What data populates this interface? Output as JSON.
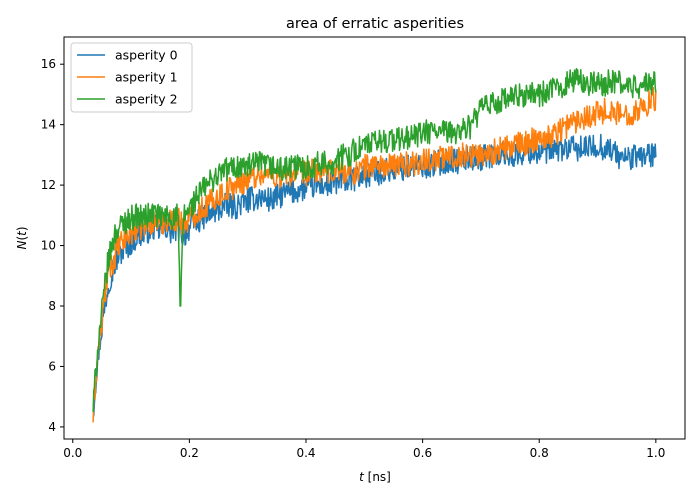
{
  "chart_data": {
    "type": "line",
    "title": "area of erratic asperities",
    "xlabel": {
      "var": "t",
      "unit": " [ns]"
    },
    "ylabel": {
      "func": "N",
      "arg": "t"
    },
    "xlim": [
      -0.015,
      1.05
    ],
    "ylim": [
      3.6,
      16.9
    ],
    "xticks": [
      {
        "value": 0.0,
        "label": "0.0"
      },
      {
        "value": 0.2,
        "label": "0.2"
      },
      {
        "value": 0.4,
        "label": "0.4"
      },
      {
        "value": 0.6,
        "label": "0.6"
      },
      {
        "value": 0.8,
        "label": "0.8"
      },
      {
        "value": 1.0,
        "label": "1.0"
      }
    ],
    "yticks": [
      {
        "value": 4,
        "label": "4"
      },
      {
        "value": 6,
        "label": "6"
      },
      {
        "value": 8,
        "label": "8"
      },
      {
        "value": 10,
        "label": "10"
      },
      {
        "value": 12,
        "label": "12"
      },
      {
        "value": 14,
        "label": "14"
      },
      {
        "value": 16,
        "label": "16"
      }
    ],
    "grid": false,
    "legend_position": "top-left",
    "series": [
      {
        "name": "asperity 0",
        "color": "#1f77b4",
        "x": [
          0.035,
          0.04,
          0.045,
          0.05,
          0.055,
          0.06,
          0.065,
          0.07,
          0.075,
          0.08,
          0.09,
          0.1,
          0.11,
          0.12,
          0.13,
          0.14,
          0.15,
          0.16,
          0.17,
          0.18,
          0.19,
          0.2,
          0.22,
          0.24,
          0.26,
          0.28,
          0.3,
          0.32,
          0.34,
          0.36,
          0.38,
          0.4,
          0.42,
          0.44,
          0.46,
          0.48,
          0.5,
          0.52,
          0.54,
          0.56,
          0.58,
          0.6,
          0.62,
          0.64,
          0.66,
          0.68,
          0.7,
          0.72,
          0.74,
          0.76,
          0.78,
          0.8,
          0.82,
          0.84,
          0.86,
          0.88,
          0.9,
          0.92,
          0.94,
          0.96,
          0.98,
          1.0
        ],
        "y": [
          4.5,
          5.7,
          6.6,
          7.3,
          8.0,
          8.6,
          9.0,
          9.3,
          9.5,
          9.7,
          9.9,
          10.1,
          10.3,
          10.4,
          10.5,
          10.6,
          10.5,
          10.6,
          10.4,
          10.6,
          10.3,
          10.6,
          10.9,
          11.1,
          11.3,
          11.3,
          11.5,
          11.6,
          11.5,
          11.7,
          11.8,
          11.9,
          12.0,
          12.0,
          12.1,
          12.2,
          12.3,
          12.4,
          12.5,
          12.5,
          12.6,
          12.6,
          12.7,
          12.8,
          12.8,
          12.9,
          12.9,
          13.0,
          13.0,
          13.0,
          13.1,
          13.1,
          13.1,
          13.2,
          13.2,
          13.2,
          13.3,
          13.2,
          12.9,
          12.9,
          13.0,
          13.0
        ]
      },
      {
        "name": "asperity 1",
        "color": "#ff7f0e",
        "x": [
          0.035,
          0.04,
          0.045,
          0.05,
          0.055,
          0.06,
          0.065,
          0.07,
          0.075,
          0.08,
          0.09,
          0.1,
          0.11,
          0.12,
          0.13,
          0.14,
          0.15,
          0.16,
          0.17,
          0.18,
          0.19,
          0.2,
          0.22,
          0.24,
          0.26,
          0.28,
          0.3,
          0.32,
          0.34,
          0.36,
          0.38,
          0.4,
          0.42,
          0.44,
          0.46,
          0.48,
          0.5,
          0.52,
          0.54,
          0.56,
          0.58,
          0.6,
          0.62,
          0.64,
          0.66,
          0.68,
          0.7,
          0.72,
          0.74,
          0.76,
          0.78,
          0.8,
          0.82,
          0.84,
          0.86,
          0.88,
          0.9,
          0.92,
          0.94,
          0.96,
          0.98,
          1.0
        ],
        "y": [
          4.3,
          5.8,
          6.7,
          7.5,
          8.3,
          9.0,
          9.3,
          9.5,
          9.8,
          10.0,
          10.2,
          10.4,
          10.6,
          10.6,
          10.8,
          10.8,
          10.7,
          10.9,
          10.8,
          10.9,
          10.7,
          10.9,
          11.2,
          11.5,
          11.8,
          12.0,
          12.2,
          12.4,
          12.3,
          12.3,
          12.4,
          12.4,
          12.5,
          12.4,
          12.5,
          12.4,
          12.6,
          12.7,
          12.6,
          12.7,
          12.7,
          12.8,
          12.9,
          12.9,
          13.0,
          13.0,
          13.0,
          13.1,
          13.2,
          13.3,
          13.4,
          13.6,
          13.6,
          13.9,
          14.1,
          14.3,
          14.4,
          14.5,
          14.3,
          14.4,
          14.6,
          14.9
        ]
      },
      {
        "name": "asperity 2",
        "color": "#2ca02c",
        "x": [
          0.035,
          0.04,
          0.045,
          0.05,
          0.055,
          0.06,
          0.065,
          0.07,
          0.075,
          0.08,
          0.09,
          0.1,
          0.11,
          0.12,
          0.13,
          0.14,
          0.15,
          0.16,
          0.17,
          0.18,
          0.185,
          0.19,
          0.2,
          0.22,
          0.24,
          0.26,
          0.28,
          0.3,
          0.32,
          0.34,
          0.36,
          0.38,
          0.4,
          0.42,
          0.44,
          0.46,
          0.48,
          0.5,
          0.52,
          0.54,
          0.56,
          0.58,
          0.6,
          0.62,
          0.64,
          0.66,
          0.68,
          0.7,
          0.72,
          0.74,
          0.76,
          0.78,
          0.8,
          0.82,
          0.84,
          0.86,
          0.88,
          0.9,
          0.92,
          0.94,
          0.96,
          0.98,
          1.0
        ],
        "y": [
          4.6,
          6.0,
          7.0,
          7.8,
          8.6,
          9.4,
          9.8,
          10.2,
          10.5,
          10.6,
          10.8,
          10.9,
          11.0,
          10.9,
          11.0,
          11.1,
          10.9,
          11.0,
          10.9,
          11.0,
          8.0,
          11.0,
          11.2,
          11.8,
          12.2,
          12.5,
          12.6,
          12.6,
          12.7,
          12.6,
          12.5,
          12.6,
          12.6,
          12.7,
          12.7,
          12.9,
          13.1,
          13.3,
          13.4,
          13.5,
          13.5,
          13.6,
          13.7,
          13.8,
          13.7,
          13.8,
          13.9,
          14.5,
          14.7,
          14.8,
          14.9,
          15.0,
          15.0,
          15.1,
          15.3,
          15.5,
          15.4,
          15.3,
          15.4,
          15.4,
          15.2,
          15.3,
          15.4
        ]
      }
    ]
  }
}
